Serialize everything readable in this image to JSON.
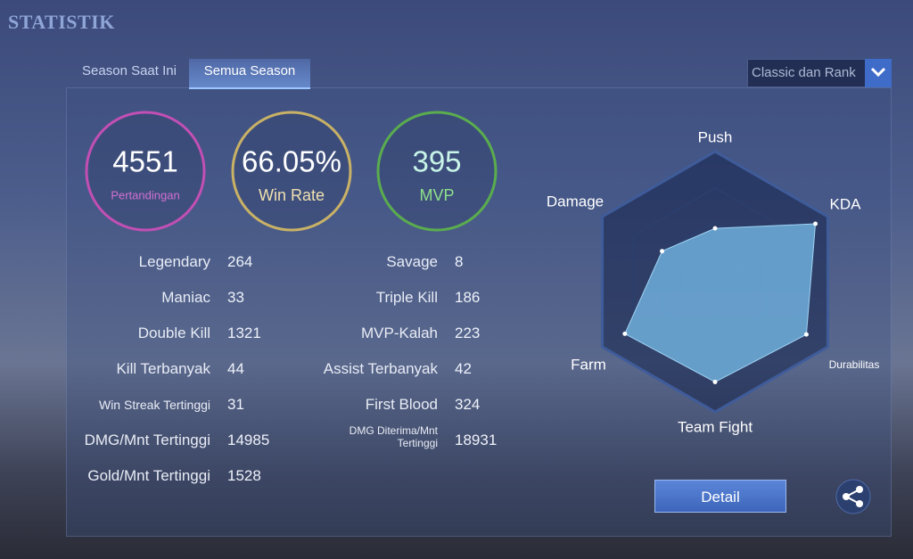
{
  "header": {
    "title": "STATISTIK"
  },
  "tabs": [
    "Season Saat Ini",
    "Semua Season"
  ],
  "filter": "Classic dan Rank",
  "summary": [
    {
      "value": 4551,
      "label": "Pertandingan"
    },
    {
      "value": "66.05%",
      "label": "Win Rate"
    },
    {
      "value": 395,
      "label": "MVP"
    }
  ],
  "stats_left": [
    {
      "label": "Legendary",
      "value": 264
    },
    {
      "label": "Maniac",
      "value": 33
    },
    {
      "label": "Double Kill",
      "value": 1321
    },
    {
      "label": "Kill Terbanyak",
      "value": 44
    },
    {
      "label": "Win Streak Tertinggi",
      "value": 31
    },
    {
      "label": "DMG/Mnt Tertinggi",
      "value": 14985
    },
    {
      "label": "Gold/Mnt Tertinggi",
      "value": 1528
    }
  ],
  "stats_right": [
    {
      "label": "Savage",
      "value": 8
    },
    {
      "label": "Triple Kill",
      "value": 186
    },
    {
      "label": "MVP-Kalah",
      "value": 223
    },
    {
      "label": "Assist Terbanyak",
      "value": 42
    },
    {
      "label": "First Blood",
      "value": 324
    },
    {
      "label": "DMG Diterima/Mnt Tertinggi",
      "value": 18931
    }
  ],
  "radar": {
    "axes": [
      "Push",
      "KDA",
      "Durabilitas",
      "Team Fight",
      "Farm",
      "Damage"
    ],
    "values": [
      0.41,
      0.89,
      0.81,
      0.77,
      0.8,
      0.47
    ]
  },
  "detail_button": "Detail"
}
